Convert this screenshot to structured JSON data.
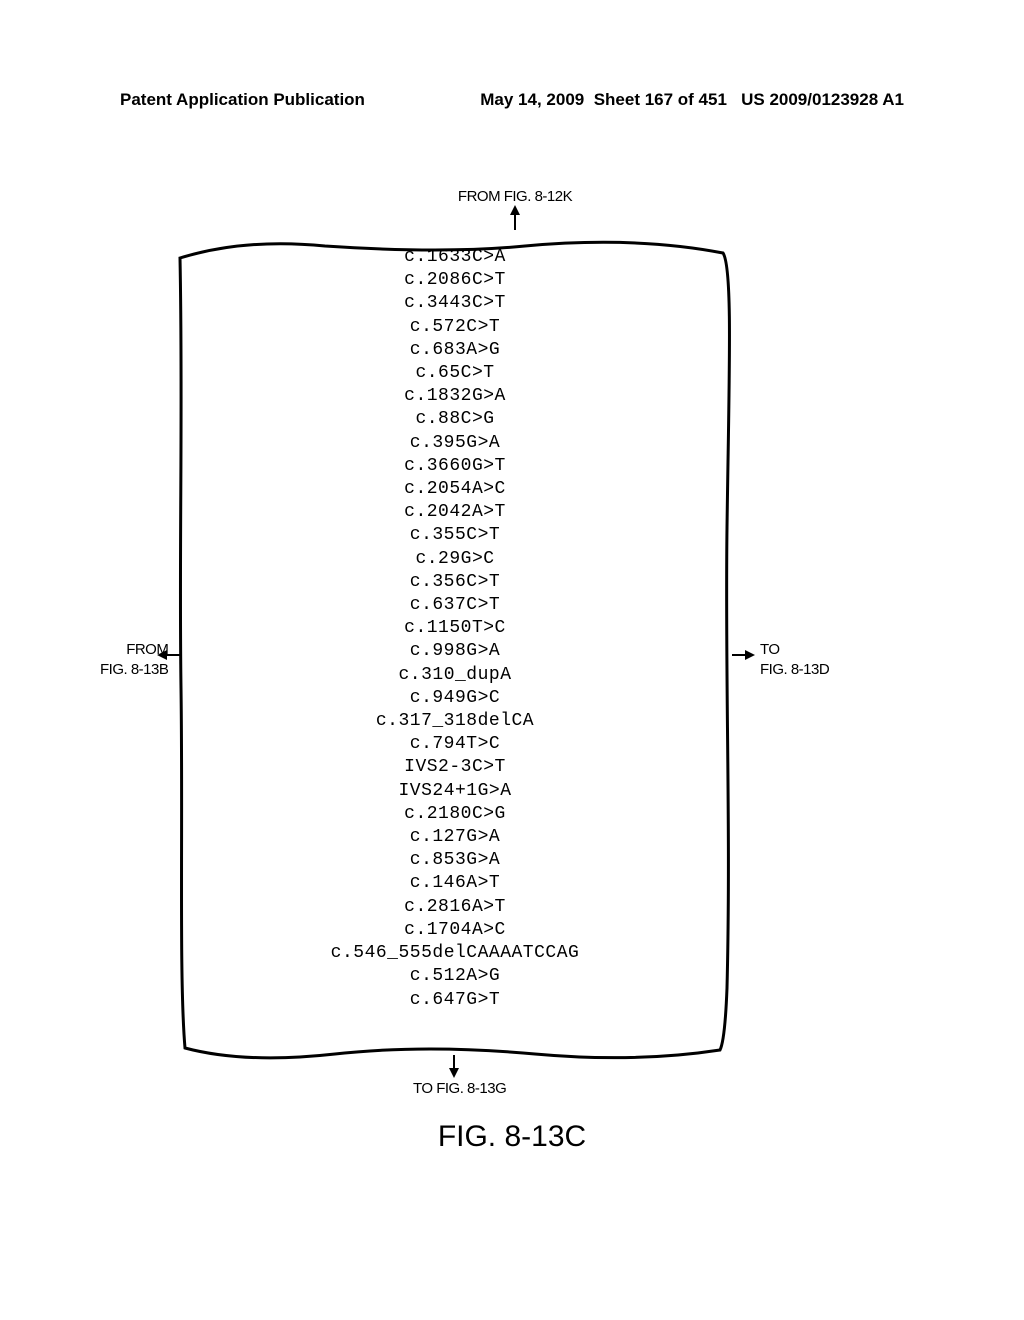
{
  "header": {
    "left": "Patent Application Publication",
    "right_date": "May 14, 2009",
    "right_sheet": "Sheet 167 of 451",
    "right_pubno": "US 2009/0123928 A1"
  },
  "labels": {
    "top": "FROM FIG. 8-12K",
    "left_line1": "FROM",
    "left_line2": "FIG. 8-13B",
    "right_line1": "TO",
    "right_line2": "FIG. 8-13D",
    "bottom": "TO FIG. 8-13G",
    "figure": "FIG. 8-13C"
  },
  "mutations": [
    "c.1633C>A",
    "c.2086C>T",
    "c.3443C>T",
    "c.572C>T",
    "c.683A>G",
    "c.65C>T",
    "c.1832G>A",
    "c.88C>G",
    "c.395G>A",
    "c.3660G>T",
    "c.2054A>C",
    "c.2042A>T",
    "c.355C>T",
    "c.29G>C",
    "c.356C>T",
    "c.637C>T",
    "c.1150T>C",
    "c.998G>A",
    "c.310_dupA",
    "c.949G>C",
    "c.317_318delCA",
    "c.794T>C",
    "IVS2-3C>T",
    "IVS24+1G>A",
    "c.2180C>G",
    "c.127G>A",
    "c.853G>A",
    "c.146A>T",
    "c.2816A>T",
    "c.1704A>C",
    "c.546_555delCAAAATCCAG",
    "c.512A>G",
    "c.647G>T"
  ],
  "box": {
    "stroke": "#000000",
    "stroke_width": 2,
    "fill": "none"
  }
}
